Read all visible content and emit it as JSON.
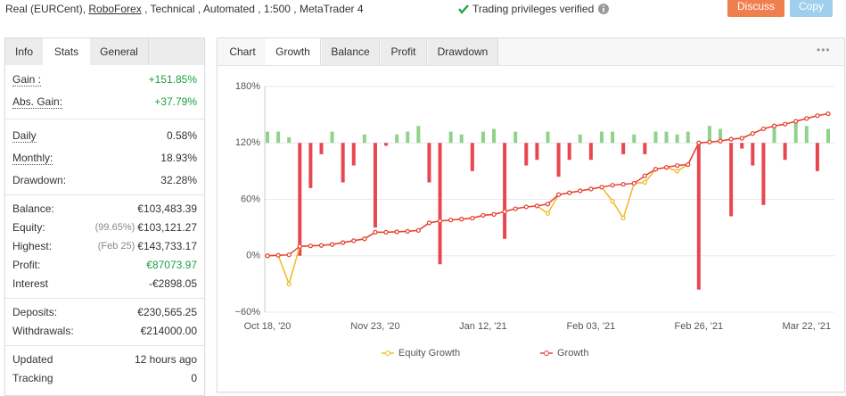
{
  "header": {
    "account": [
      "Real (EURCent), ",
      "RoboForex",
      " , Technical , Automated , 1:500 , MetaTrader 4"
    ],
    "verified": "Trading privileges verified",
    "buttons": [
      "Discuss",
      "Copy"
    ]
  },
  "stats": {
    "tabs": [
      "Info",
      "Stats",
      "General"
    ],
    "active_tab": 1,
    "groups": [
      [
        {
          "label": "Gain :",
          "value": "+151.85%",
          "color": "#1e9e3c",
          "dotted": true
        },
        {
          "label": "Abs. Gain:",
          "value": "+37.79%",
          "color": "#1e9e3c",
          "dotted": true
        }
      ],
      [
        {
          "label": "Daily",
          "value": "0.58%",
          "dotted": true
        },
        {
          "label": "Monthly:",
          "value": "18.93%",
          "dotted": true
        },
        {
          "label": "Drawdown:",
          "value": "32.28%"
        }
      ],
      [
        {
          "label": "Balance:",
          "value": "€103,483.39"
        },
        {
          "label": "Equity:",
          "note": "(99.65%)",
          "value": "€103,121.27"
        },
        {
          "label": "Highest:",
          "note": "(Feb 25)",
          "value": "€143,733.17"
        },
        {
          "label": "Profit:",
          "value": "€87073.97",
          "color": "#1e9e3c"
        },
        {
          "label": "Interest",
          "value": "-€2898.05"
        }
      ],
      [
        {
          "label": "Deposits:",
          "value": "€230,565.25"
        },
        {
          "label": "Withdrawals:",
          "value": "€214000.00"
        }
      ],
      [
        {
          "label": "Updated",
          "value": "12 hours ago"
        },
        {
          "label": "Tracking",
          "value": "0"
        }
      ]
    ]
  },
  "chart": {
    "tabs": [
      "Chart",
      "Growth",
      "Balance",
      "Profit",
      "Drawdown"
    ],
    "active_tab": 1,
    "menu": "•••",
    "type": "line",
    "categories": [
      "Oct 18, '20",
      null,
      null,
      null,
      null,
      null,
      null,
      null,
      null,
      null,
      "Nov 23, '20",
      null,
      null,
      null,
      null,
      null,
      null,
      null,
      null,
      null,
      "Jan 12, '21",
      null,
      null,
      null,
      null,
      null,
      null,
      null,
      null,
      null,
      "Feb 03, '21",
      null,
      null,
      null,
      null,
      null,
      null,
      null,
      null,
      null,
      "Feb 26, '21",
      null,
      null,
      null,
      null,
      null,
      null,
      null,
      null,
      null,
      "Mar 22, '21",
      null,
      null
    ],
    "ylim": [
      -60,
      180
    ],
    "yticks": [
      {
        "value": -60,
        "label": "−60%"
      },
      {
        "value": 0,
        "label": "0%"
      },
      {
        "value": 60,
        "label": "60%"
      },
      {
        "value": 120,
        "label": "120%"
      },
      {
        "value": 180,
        "label": "180%"
      }
    ],
    "grid": true,
    "series": [
      {
        "name": "Equity Growth",
        "color": "#f2b824",
        "values": [
          0,
          0.5,
          -30,
          10,
          10.5,
          11,
          12,
          14,
          16,
          18,
          25,
          25,
          25.5,
          26,
          27,
          35,
          37,
          38,
          39,
          40,
          43,
          44,
          47,
          50,
          52,
          53,
          45,
          65,
          67,
          69,
          71,
          73,
          58,
          40,
          77,
          78,
          92,
          94,
          90,
          97,
          120,
          121,
          122,
          124,
          125,
          130,
          135,
          138,
          140,
          143,
          146,
          149,
          151
        ]
      },
      {
        "name": "Growth",
        "color": "#e5403a",
        "values": [
          0,
          0.5,
          1,
          10,
          10.5,
          11,
          12,
          14,
          16,
          18,
          25,
          25,
          25.5,
          26,
          27,
          35,
          37,
          38,
          39,
          40,
          43,
          44,
          47,
          50,
          52,
          53,
          55,
          65,
          67,
          69,
          71,
          73,
          75,
          76,
          77,
          85,
          92,
          94,
          96,
          97,
          120,
          121,
          122,
          124,
          125,
          130,
          135,
          138,
          140,
          143,
          146,
          149,
          151
        ]
      }
    ],
    "bars": {
      "y2lim": [
        -3,
        1
      ],
      "positive_color": "#8fd38a",
      "negative_color": "#e8474f",
      "values": [
        0.2,
        0.2,
        0.1,
        -2.0,
        -0.8,
        -0.2,
        0.2,
        -0.7,
        -0.4,
        0.15,
        -1.5,
        -0.05,
        0.15,
        0.2,
        0.3,
        -0.7,
        -2.15,
        0.2,
        0.15,
        -0.5,
        0.2,
        0.25,
        -1.7,
        0.2,
        -0.4,
        -0.3,
        0.2,
        -0.6,
        -0.3,
        0.15,
        -0.3,
        0.2,
        0.2,
        -0.2,
        0.15,
        -0.2,
        0.2,
        0.2,
        0.15,
        0.2,
        -2.6,
        0.3,
        0.25,
        -1.3,
        -0.1,
        -0.4,
        -1.1,
        0.3,
        -0.3,
        0.4,
        0.3,
        -0.5,
        0.25
      ]
    }
  }
}
